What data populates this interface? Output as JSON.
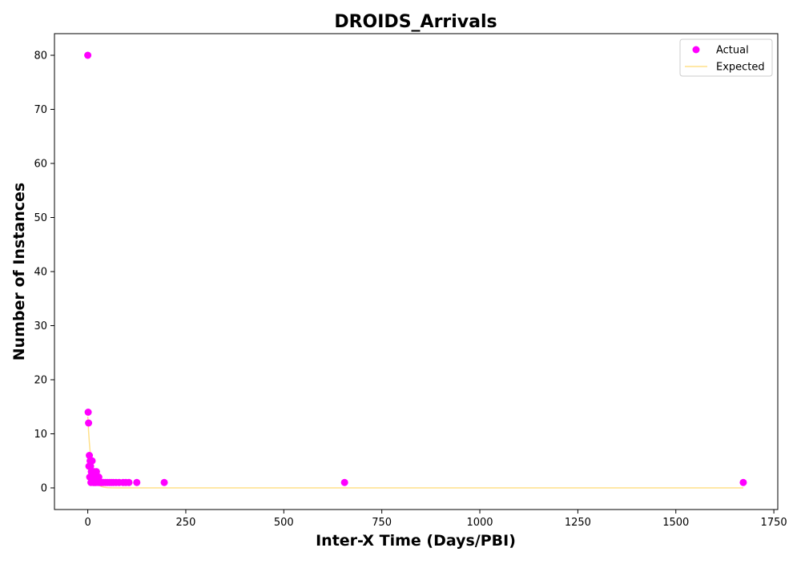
{
  "chart_data": {
    "type": "scatter",
    "title": "DROIDS_Arrivals",
    "xlabel": "Inter-X Time (Days/PBI)",
    "ylabel": "Number of Instances",
    "xlim": [
      -85,
      1760
    ],
    "ylim": [
      -4,
      84
    ],
    "x_ticks": [
      0,
      250,
      500,
      750,
      1000,
      1250,
      1500,
      1750
    ],
    "y_ticks": [
      0,
      10,
      20,
      30,
      40,
      50,
      60,
      70,
      80
    ],
    "grid": false,
    "legend_position": "upper-right",
    "series": [
      {
        "name": "Actual",
        "kind": "scatter",
        "color": "#ff00ff",
        "points": [
          [
            0,
            80
          ],
          [
            1,
            14
          ],
          [
            2,
            12
          ],
          [
            3,
            4
          ],
          [
            4,
            6
          ],
          [
            5,
            2
          ],
          [
            6,
            5
          ],
          [
            7,
            4
          ],
          [
            8,
            1
          ],
          [
            9,
            3
          ],
          [
            10,
            2
          ],
          [
            11,
            5
          ],
          [
            12,
            3
          ],
          [
            13,
            2
          ],
          [
            14,
            1
          ],
          [
            15,
            2
          ],
          [
            16,
            1
          ],
          [
            17,
            3
          ],
          [
            18,
            2
          ],
          [
            19,
            1
          ],
          [
            20,
            2
          ],
          [
            21,
            1
          ],
          [
            22,
            3
          ],
          [
            24,
            2
          ],
          [
            26,
            1
          ],
          [
            28,
            2
          ],
          [
            30,
            1
          ],
          [
            33,
            1
          ],
          [
            36,
            1
          ],
          [
            40,
            1
          ],
          [
            45,
            1
          ],
          [
            50,
            1
          ],
          [
            55,
            1
          ],
          [
            60,
            1
          ],
          [
            65,
            1
          ],
          [
            72,
            1
          ],
          [
            80,
            1
          ],
          [
            90,
            1
          ],
          [
            97,
            1
          ],
          [
            105,
            1
          ],
          [
            125,
            1
          ],
          [
            195,
            1
          ],
          [
            655,
            1
          ],
          [
            1672,
            1
          ]
        ]
      },
      {
        "name": "Expected",
        "kind": "line",
        "color": "#ffe08a",
        "points": [
          [
            0,
            13.2
          ],
          [
            2,
            10.5
          ],
          [
            4,
            8.4
          ],
          [
            6,
            6.7
          ],
          [
            8,
            5.3
          ],
          [
            10,
            4.2
          ],
          [
            12,
            3.4
          ],
          [
            15,
            2.4
          ],
          [
            18,
            1.7
          ],
          [
            21,
            1.2
          ],
          [
            25,
            0.8
          ],
          [
            30,
            0.45
          ],
          [
            35,
            0.25
          ],
          [
            40,
            0.14
          ],
          [
            50,
            0.04
          ],
          [
            60,
            0.01
          ],
          [
            80,
            0
          ],
          [
            200,
            0
          ],
          [
            500,
            0
          ],
          [
            1000,
            0
          ],
          [
            1500,
            0
          ],
          [
            1672,
            0
          ]
        ]
      }
    ]
  }
}
